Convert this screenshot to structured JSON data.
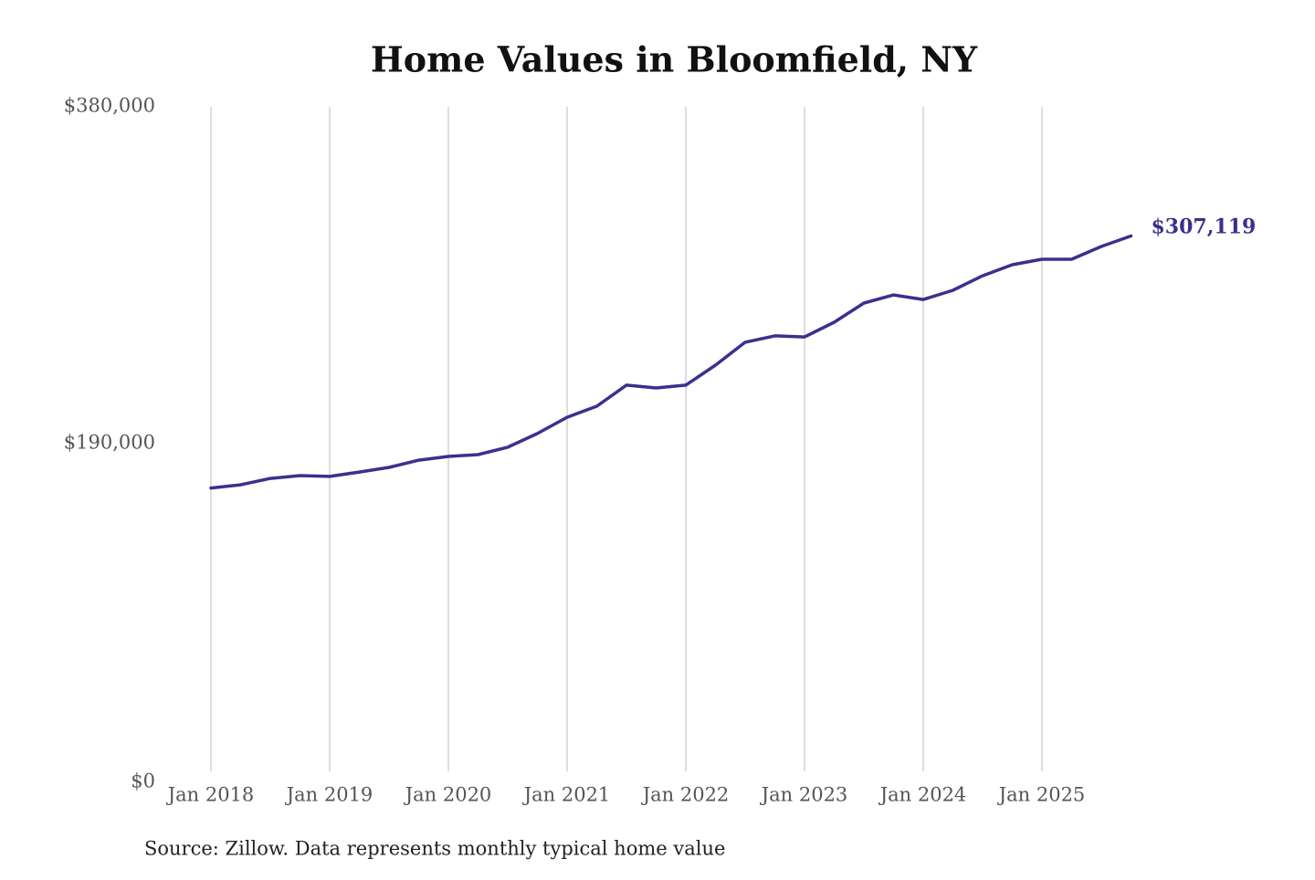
{
  "chart_data": {
    "type": "line",
    "title": "Home Values in Bloomfield, NY",
    "source": "Source: Zillow. Data represents monthly typical home value",
    "color": "#38318f",
    "x": [
      "2018-01",
      "2018-04",
      "2018-07",
      "2018-10",
      "2019-01",
      "2019-04",
      "2019-07",
      "2019-10",
      "2020-01",
      "2020-04",
      "2020-07",
      "2020-10",
      "2021-01",
      "2021-04",
      "2021-07",
      "2021-10",
      "2022-01",
      "2022-04",
      "2022-07",
      "2022-10",
      "2023-01",
      "2023-04",
      "2023-07",
      "2023-10",
      "2024-01",
      "2024-04",
      "2024-07",
      "2024-10",
      "2025-01",
      "2025-04",
      "2025-07",
      "2025-10"
    ],
    "values": [
      165000,
      166800,
      170400,
      172000,
      171500,
      174000,
      176600,
      180700,
      182800,
      183800,
      188000,
      195700,
      204900,
      211100,
      223000,
      221400,
      223000,
      234300,
      247200,
      250800,
      250200,
      258500,
      269300,
      273900,
      271300,
      276500,
      284700,
      290900,
      294000,
      294000,
      301200,
      307119
    ],
    "value_labels": [
      null,
      null,
      null,
      null,
      null,
      null,
      null,
      null,
      null,
      null,
      null,
      null,
      null,
      null,
      null,
      null,
      null,
      null,
      null,
      null,
      null,
      null,
      null,
      null,
      null,
      null,
      null,
      null,
      null,
      null,
      null,
      "$307,119"
    ],
    "xticks": [
      {
        "value": "2018-01",
        "label": "Jan 2018"
      },
      {
        "value": "2019-01",
        "label": "Jan 2019"
      },
      {
        "value": "2020-01",
        "label": "Jan 2020"
      },
      {
        "value": "2021-01",
        "label": "Jan 2021"
      },
      {
        "value": "2022-01",
        "label": "Jan 2022"
      },
      {
        "value": "2023-01",
        "label": "Jan 2023"
      },
      {
        "value": "2024-01",
        "label": "Jan 2024"
      },
      {
        "value": "2025-01",
        "label": "Jan 2025"
      }
    ],
    "ylim": [
      0,
      380000
    ],
    "yticks": [
      {
        "value": 0,
        "label": "$0"
      },
      {
        "value": 190000,
        "label": "$190,000"
      },
      {
        "value": 380000,
        "label": "$380,000"
      }
    ],
    "grid": true
  }
}
